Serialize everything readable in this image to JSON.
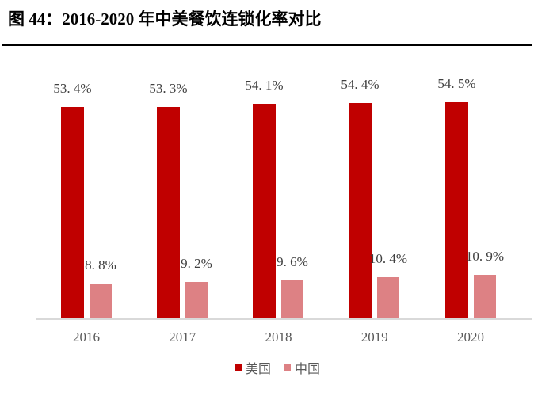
{
  "title": "图 44：2016-2020 年中美餐饮连锁化率对比",
  "colors": {
    "us_bar": "#C00000",
    "cn_bar": "#DD8184",
    "axis_line": "#D9D9D9",
    "value_label": "#404040",
    "tick_label": "#595959",
    "legend_text": "#595959",
    "divider": "#000000"
  },
  "chart_data": {
    "type": "bar",
    "title": "图 44：2016-2020 年中美餐饮连锁化率对比",
    "categories": [
      "2016",
      "2017",
      "2018",
      "2019",
      "2020"
    ],
    "series": [
      {
        "key": "us",
        "name": "美国",
        "values": [
          53.4,
          53.3,
          54.1,
          54.4,
          54.5
        ],
        "labels": [
          "53. 4%",
          "53. 3%",
          "54. 1%",
          "54. 4%",
          "54. 5%"
        ]
      },
      {
        "key": "cn",
        "name": "中国",
        "values": [
          8.8,
          9.2,
          9.6,
          10.4,
          10.9
        ],
        "labels": [
          "8. 8%",
          "9. 2%",
          "9. 6%",
          "10. 4%",
          "10. 9%"
        ]
      }
    ],
    "unit": "%",
    "ylim": [
      0,
      60
    ],
    "grid": false,
    "legend_position": "bottom"
  }
}
